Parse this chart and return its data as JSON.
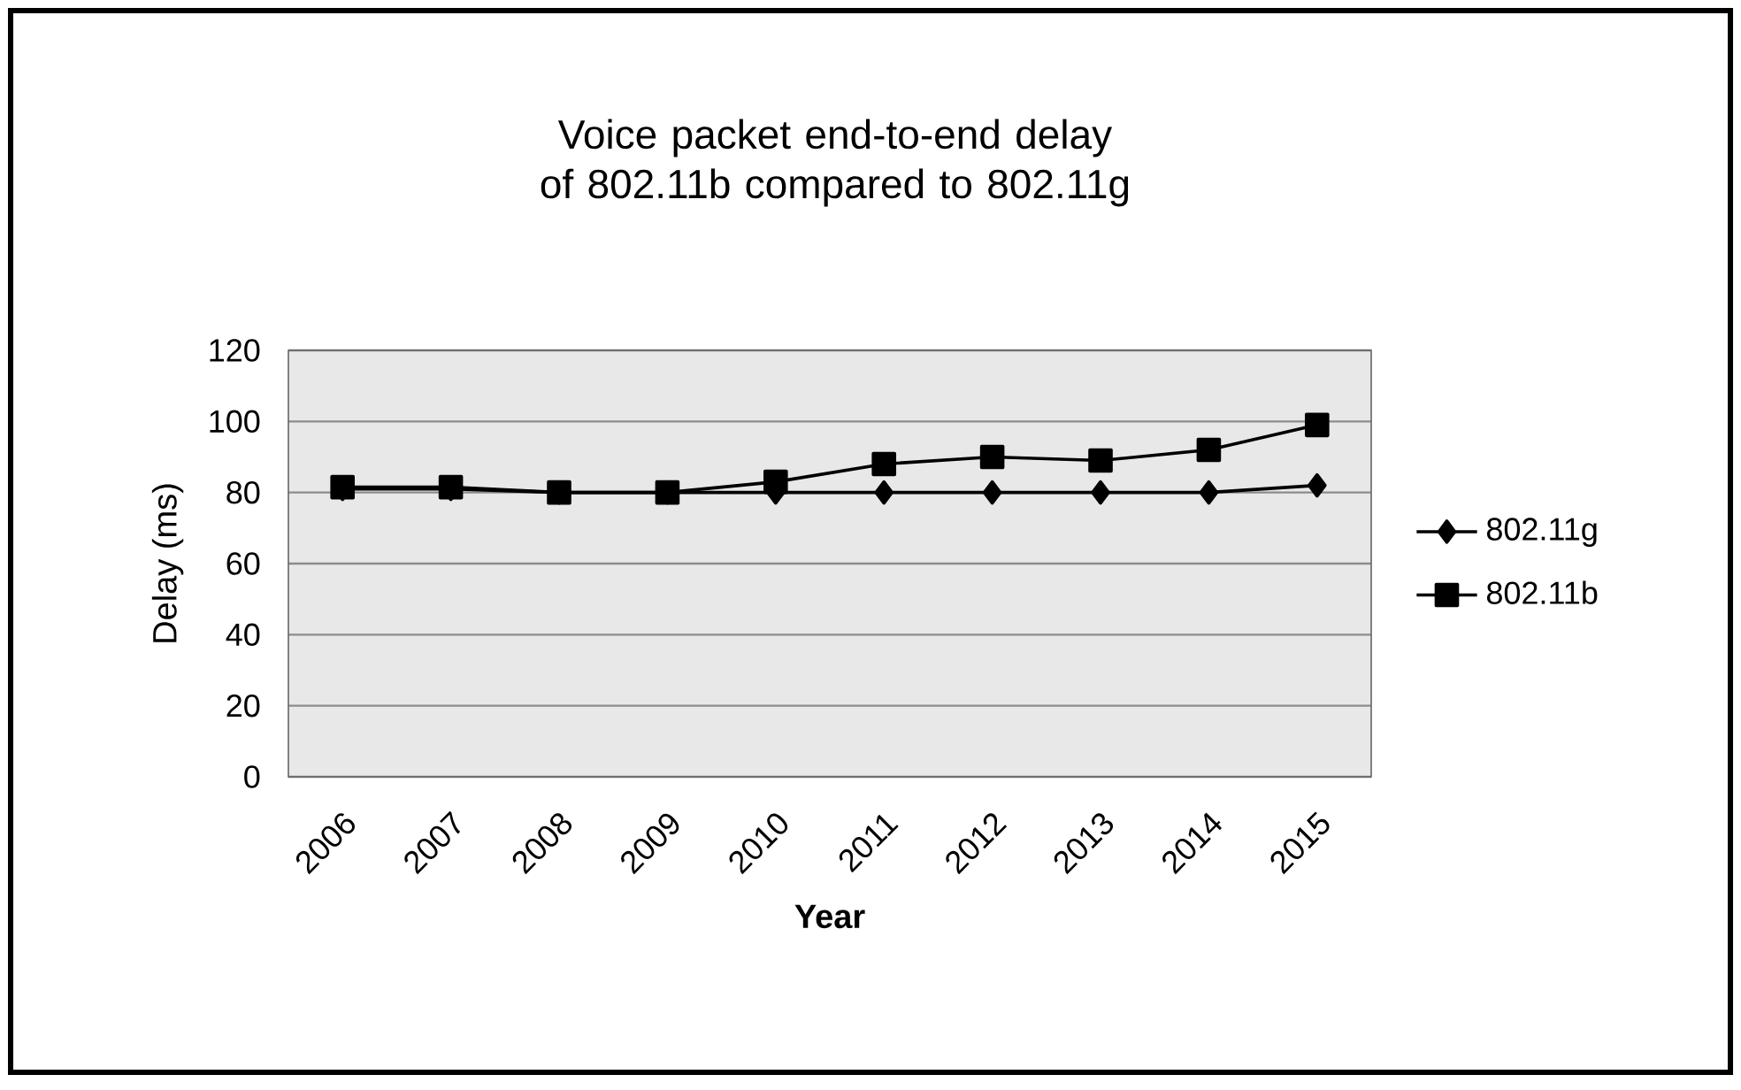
{
  "chart_data": {
    "type": "line",
    "title": "Voice packet end-to-end delay of 802.11b compared to 802.11g",
    "xlabel": "Year",
    "ylabel": "Delay (ms)",
    "categories": [
      "2006",
      "2007",
      "2008",
      "2009",
      "2010",
      "2011",
      "2012",
      "2013",
      "2014",
      "2015"
    ],
    "series": [
      {
        "name": "802.11g",
        "color": "#000000",
        "marker": "diamond",
        "values": [
          81,
          81,
          80,
          80,
          80,
          80,
          80,
          80,
          80,
          82
        ]
      },
      {
        "name": "802.11b",
        "color": "#000000",
        "marker": "square",
        "values": [
          81.5,
          81.5,
          80,
          80,
          83,
          88,
          90,
          89,
          92,
          99
        ]
      }
    ],
    "ylim": [
      0,
      120
    ],
    "yticks": [
      0,
      20,
      40,
      60,
      80,
      100,
      120
    ],
    "grid": "y",
    "legend": "right",
    "line_style": "solid"
  }
}
